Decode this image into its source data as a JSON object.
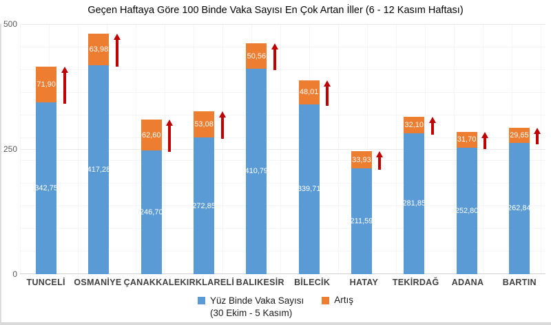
{
  "title": "Geçen Haftaya Göre 100 Binde Vaka Sayısı En Çok Artan İller (6 - 12 Kasım Haftası)",
  "colors": {
    "cases_blue": "#5b9bd5",
    "increase_orange": "#ed7d31",
    "arrow_dark_red": "#c00000"
  },
  "chart_data": {
    "type": "bar",
    "stacked": true,
    "grid": "faint light-gray square grid behind plot; horizontal major lines at 0, 250, 500",
    "categories": [
      "TUNCELİ",
      "OSMANİYE",
      "ÇANAKKALE",
      "KIRKLARELİ",
      "BALIKESİR",
      "BİLECİK",
      "HATAY",
      "TEKİRDAĞ",
      "ADANA",
      "BARTIN"
    ],
    "series": [
      {
        "name": "Yüz Binde Vaka Sayısı",
        "color": "#5b9bd5",
        "values": [
          342.75,
          417.28,
          246.7,
          272.85,
          410.79,
          339.71,
          211.59,
          281.85,
          252.8,
          262.84
        ],
        "labels": [
          "342,75",
          "417,28",
          "246,70",
          "272,85",
          "410,79",
          "339,71",
          "211,59",
          "281,85",
          "252,80",
          "262,84"
        ]
      },
      {
        "name": "Artış",
        "color": "#ed7d31",
        "values": [
          71.9,
          63.98,
          62.6,
          53.08,
          50.56,
          48.01,
          33.93,
          32.1,
          31.7,
          29.65
        ],
        "labels": [
          "71,90",
          "63,98",
          "62,60",
          "53,08",
          "50,56",
          "48,01",
          "33,93",
          "32,10",
          "31,70",
          "29,65"
        ]
      }
    ],
    "ylim": [
      0,
      500
    ],
    "y_ticks": [
      0,
      250,
      500
    ],
    "annotation": "dark red upward arrow beside each increase segment",
    "legend": {
      "position": "bottom",
      "series1_label": "Yüz Binde Vaka Sayısı",
      "series1_sublabel": "(30 Ekim - 5 Kasım)",
      "series2_label": "Artış"
    }
  }
}
